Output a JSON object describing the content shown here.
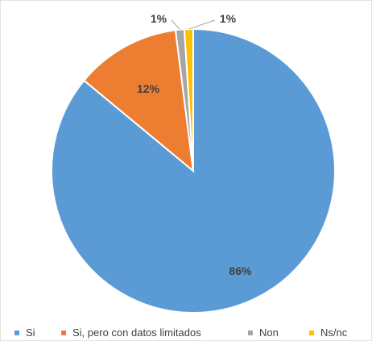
{
  "chart_data": {
    "type": "pie",
    "title": "",
    "slices": [
      {
        "label": "Si",
        "value": 86,
        "display": "86%",
        "color": "#5b9bd5"
      },
      {
        "label": "Si, pero con datos limitados",
        "value": 12,
        "display": "12%",
        "color": "#ed7d31"
      },
      {
        "label": "Non",
        "value": 1,
        "display": "1%",
        "color": "#a5a5a5"
      },
      {
        "label": "Ns/nc",
        "value": 1,
        "display": "1%",
        "color": "#ffc000"
      }
    ],
    "start_angle": "12 o'clock",
    "direction": "clockwise",
    "legend_position": "bottom"
  }
}
